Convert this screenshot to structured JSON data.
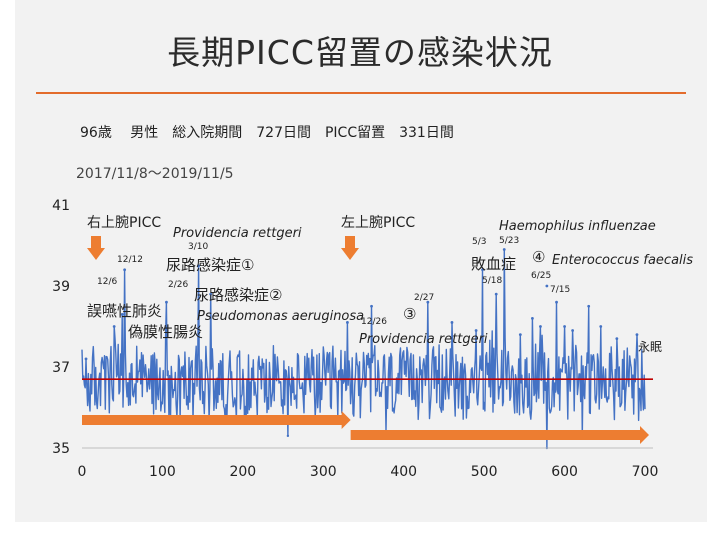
{
  "title": "長期PICC留置の感染状況",
  "info_line": "96歳　 男性　総入院期間　727日間　PICC留置　331日間",
  "date_range": "2017/11/8～2019/11/5",
  "colors": {
    "series": "#4472c4",
    "baseline": "#c00000",
    "arrow": "#ed7d31",
    "rule": "#e36c2c"
  },
  "chart_data": {
    "type": "line",
    "title": "",
    "xlabel": "",
    "ylabel": "",
    "xlim": [
      0,
      700
    ],
    "ylim": [
      35,
      41
    ],
    "x_ticks": [
      0,
      100,
      200,
      300,
      400,
      500,
      600,
      700
    ],
    "y_ticks": [
      35,
      37,
      39,
      41
    ],
    "grid": false,
    "reference_line": {
      "y": 36.7
    },
    "series": [
      {
        "name": "",
        "baseline": 36.6,
        "noise_range": [
          35.7,
          37.4
        ],
        "spikes": [
          {
            "x": 5,
            "y": 37.2
          },
          {
            "x": 40,
            "y": 38.0
          },
          {
            "x": 50,
            "y": 38.3
          },
          {
            "x": 53,
            "y": 39.4
          },
          {
            "x": 105,
            "y": 38.6
          },
          {
            "x": 145,
            "y": 39.5
          },
          {
            "x": 160,
            "y": 38.8
          },
          {
            "x": 330,
            "y": 38.1
          },
          {
            "x": 360,
            "y": 38.5
          },
          {
            "x": 430,
            "y": 38.6
          },
          {
            "x": 460,
            "y": 38.1
          },
          {
            "x": 490,
            "y": 37.9
          },
          {
            "x": 498,
            "y": 39.4
          },
          {
            "x": 515,
            "y": 38.8
          },
          {
            "x": 525,
            "y": 39.9
          },
          {
            "x": 545,
            "y": 37.8
          },
          {
            "x": 560,
            "y": 38.2
          },
          {
            "x": 570,
            "y": 38.0
          },
          {
            "x": 578,
            "y": 39.0
          },
          {
            "x": 590,
            "y": 38.6
          },
          {
            "x": 600,
            "y": 38.0
          },
          {
            "x": 610,
            "y": 37.9
          },
          {
            "x": 630,
            "y": 38.5
          },
          {
            "x": 645,
            "y": 38.0
          },
          {
            "x": 665,
            "y": 37.7
          },
          {
            "x": 690,
            "y": 37.8
          }
        ],
        "dips": [
          {
            "x": 256,
            "y": 35.3
          },
          {
            "x": 378,
            "y": 35.4
          },
          {
            "x": 578,
            "y": 35.0
          },
          {
            "x": 622,
            "y": 35.3
          }
        ]
      }
    ],
    "picc_periods": [
      {
        "start": 0,
        "end": 334
      },
      {
        "start": 334,
        "end": 700
      }
    ],
    "insertion_markers": [
      {
        "x": 5,
        "label": "右上腕PICC"
      },
      {
        "x": 325,
        "label": "左上腕PICC"
      }
    ],
    "annotations": {
      "d_1212": "12/12",
      "d_126": "12/6",
      "d_310": "3/10",
      "d_226": "2/26",
      "d_227": "2/27",
      "d_1226": "12/26",
      "d_53": "5/3",
      "d_523": "5/23",
      "d_518": "5/18",
      "d_625": "6/25",
      "d_715": "7/15",
      "pneumonia": "誤嚥性肺炎",
      "pseudomembranous": "偽膜性腸炎",
      "uti1": "尿路感染症①",
      "uti2": "尿路感染症②",
      "providencia1": "Providencia rettgeri",
      "pseudomonas": "Pseudomonas aeruginosa",
      "circ3": "③",
      "providencia2": "Providencia rettgeri",
      "sepsis": "敗血症",
      "haemophilus": "Haemophilus influenzae",
      "circ4": "④",
      "enterococcus": "Enterococcus faecalis",
      "death": "永眠"
    }
  }
}
